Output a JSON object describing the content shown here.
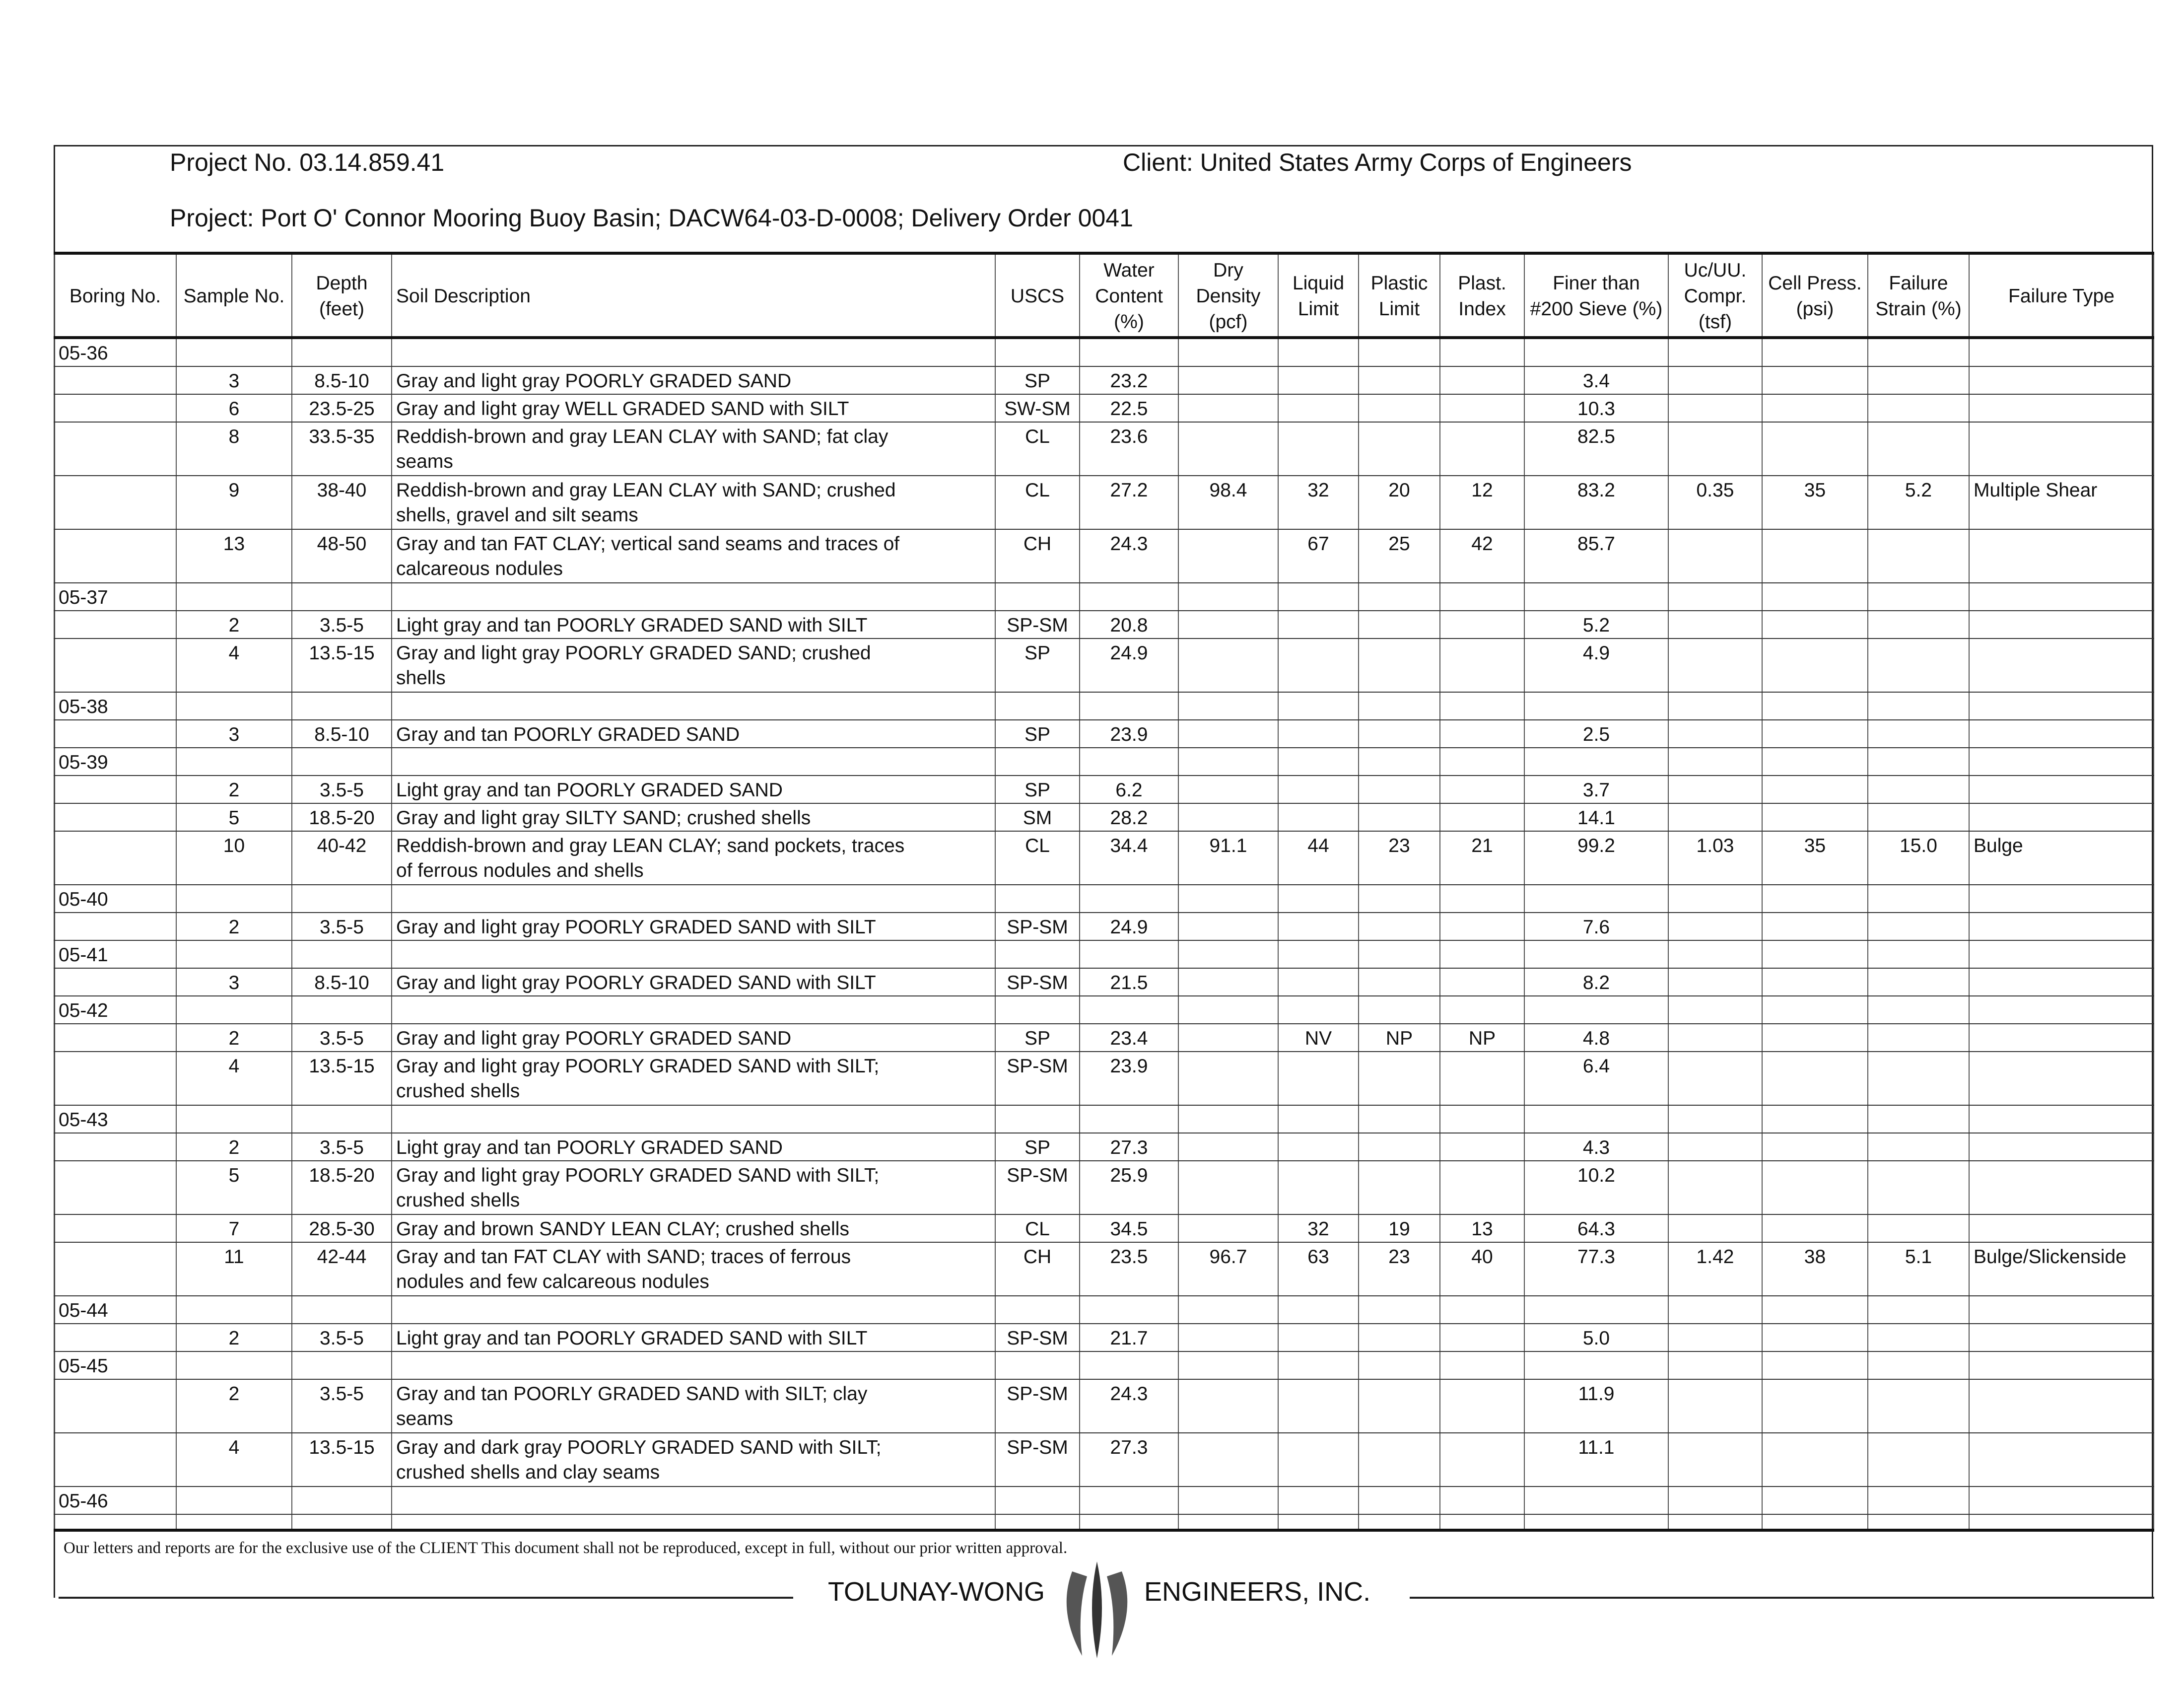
{
  "header": {
    "project_no": "Project No. 03.14.859.41",
    "client": "Client: United States Army Corps of Engineers",
    "project": "Project: Port O' Connor Mooring Buoy Basin; DACW64-03-D-0008; Delivery Order 0041"
  },
  "columns": [
    "Boring No.",
    "Sample No.",
    "Depth (feet)",
    "Soil Description",
    "USCS",
    "Water Content (%)",
    "Dry Density (pcf)",
    "Liquid Limit",
    "Plastic Limit",
    "Plast. Index",
    "Finer than #200 Sieve (%)",
    "Uc/UU. Compr. (tsf)",
    "Cell Press. (psi)",
    "Failure Strain (%)",
    "Failure Type"
  ],
  "rows": [
    {
      "boring": "05-36"
    },
    {
      "sample": "3",
      "depth": "8.5-10",
      "desc": "Gray and light gray POORLY GRADED SAND",
      "uscs": "SP",
      "wc": "23.2",
      "f200": "3.4"
    },
    {
      "sample": "6",
      "depth": "23.5-25",
      "desc": "Gray and light gray WELL GRADED SAND with SILT",
      "uscs": "SW-SM",
      "wc": "22.5",
      "f200": "10.3"
    },
    {
      "sample": "8",
      "depth": "33.5-35",
      "desc": "Reddish-brown and gray LEAN CLAY with SAND; fat clay\nseams",
      "uscs": "CL",
      "wc": "23.6",
      "f200": "82.5"
    },
    {
      "sample": "9",
      "depth": "38-40",
      "desc": "Reddish-brown and gray LEAN CLAY with SAND; crushed\nshells, gravel and silt seams",
      "uscs": "CL",
      "wc": "27.2",
      "dd": "98.4",
      "ll": "32",
      "pl": "20",
      "pi": "12",
      "f200": "83.2",
      "uc": "0.35",
      "cell": "35",
      "strain": "5.2",
      "ftype": "Multiple Shear"
    },
    {
      "sample": "13",
      "depth": "48-50",
      "desc": "Gray and tan FAT CLAY; vertical sand seams and traces of\ncalcareous nodules",
      "uscs": "CH",
      "wc": "24.3",
      "ll": "67",
      "pl": "25",
      "pi": "42",
      "f200": "85.7"
    },
    {
      "boring": "05-37"
    },
    {
      "sample": "2",
      "depth": "3.5-5",
      "desc": "Light gray and tan POORLY GRADED SAND with SILT",
      "uscs": "SP-SM",
      "wc": "20.8",
      "f200": "5.2"
    },
    {
      "sample": "4",
      "depth": "13.5-15",
      "desc": "Gray and light gray POORLY GRADED SAND; crushed\nshells",
      "uscs": "SP",
      "wc": "24.9",
      "f200": "4.9"
    },
    {
      "boring": "05-38"
    },
    {
      "sample": "3",
      "depth": "8.5-10",
      "desc": "Gray and tan POORLY GRADED SAND",
      "uscs": "SP",
      "wc": "23.9",
      "f200": "2.5"
    },
    {
      "boring": "05-39"
    },
    {
      "sample": "2",
      "depth": "3.5-5",
      "desc": "Light gray and tan POORLY GRADED SAND",
      "uscs": "SP",
      "wc": "6.2",
      "f200": "3.7"
    },
    {
      "sample": "5",
      "depth": "18.5-20",
      "desc": "Gray and light gray SILTY SAND; crushed shells",
      "uscs": "SM",
      "wc": "28.2",
      "f200": "14.1"
    },
    {
      "sample": "10",
      "depth": "40-42",
      "desc": "Reddish-brown and gray LEAN CLAY; sand pockets, traces\nof ferrous nodules and shells",
      "uscs": "CL",
      "wc": "34.4",
      "dd": "91.1",
      "ll": "44",
      "pl": "23",
      "pi": "21",
      "f200": "99.2",
      "uc": "1.03",
      "cell": "35",
      "strain": "15.0",
      "ftype": "Bulge"
    },
    {
      "boring": "05-40"
    },
    {
      "sample": "2",
      "depth": "3.5-5",
      "desc": "Gray and light gray POORLY GRADED SAND with SILT",
      "uscs": "SP-SM",
      "wc": "24.9",
      "f200": "7.6"
    },
    {
      "boring": "05-41"
    },
    {
      "sample": "3",
      "depth": "8.5-10",
      "desc": "Gray and light gray POORLY GRADED SAND with SILT",
      "uscs": "SP-SM",
      "wc": "21.5",
      "f200": "8.2"
    },
    {
      "boring": "05-42"
    },
    {
      "sample": "2",
      "depth": "3.5-5",
      "desc": "Gray and light gray POORLY GRADED SAND",
      "uscs": "SP",
      "wc": "23.4",
      "ll": "NV",
      "pl": "NP",
      "pi": "NP",
      "f200": "4.8"
    },
    {
      "sample": "4",
      "depth": "13.5-15",
      "desc": "Gray and light gray POORLY GRADED SAND with SILT;\ncrushed shells",
      "uscs": "SP-SM",
      "wc": "23.9",
      "f200": "6.4"
    },
    {
      "boring": "05-43"
    },
    {
      "sample": "2",
      "depth": "3.5-5",
      "desc": "Light gray and tan POORLY GRADED SAND",
      "uscs": "SP",
      "wc": "27.3",
      "f200": "4.3"
    },
    {
      "sample": "5",
      "depth": "18.5-20",
      "desc": "Gray and light gray POORLY GRADED SAND with SILT;\ncrushed shells",
      "uscs": "SP-SM",
      "wc": "25.9",
      "f200": "10.2"
    },
    {
      "sample": "7",
      "depth": "28.5-30",
      "desc": "Gray and brown SANDY LEAN CLAY; crushed shells",
      "uscs": "CL",
      "wc": "34.5",
      "ll": "32",
      "pl": "19",
      "pi": "13",
      "f200": "64.3"
    },
    {
      "sample": "11",
      "depth": "42-44",
      "desc": "Gray and tan FAT CLAY with SAND; traces of ferrous\nnodules and few calcareous nodules",
      "uscs": "CH",
      "wc": "23.5",
      "dd": "96.7",
      "ll": "63",
      "pl": "23",
      "pi": "40",
      "f200": "77.3",
      "uc": "1.42",
      "cell": "38",
      "strain": "5.1",
      "ftype": "Bulge/Slickenside"
    },
    {
      "boring": "05-44"
    },
    {
      "sample": "2",
      "depth": "3.5-5",
      "desc": "Light gray and tan POORLY GRADED SAND with SILT",
      "uscs": "SP-SM",
      "wc": "21.7",
      "f200": "5.0"
    },
    {
      "boring": "05-45"
    },
    {
      "sample": "2",
      "depth": "3.5-5",
      "desc": "Gray and tan POORLY GRADED SAND with SILT; clay\nseams",
      "uscs": "SP-SM",
      "wc": "24.3",
      "f200": "11.9"
    },
    {
      "sample": "4",
      "depth": "13.5-15",
      "desc": "Gray and dark gray POORLY GRADED SAND with SILT;\ncrushed shells and clay seams",
      "uscs": "SP-SM",
      "wc": "27.3",
      "f200": "11.1"
    },
    {
      "boring": "05-46"
    }
  ],
  "footer": {
    "disclaimer": "Our letters and reports are for the exclusive use of the CLIENT  This document shall not be reproduced, except in full, without our prior written approval.",
    "company_left": "TOLUNAY-WONG",
    "company_right": "ENGINEERS, INC.",
    "logo": "TW"
  }
}
